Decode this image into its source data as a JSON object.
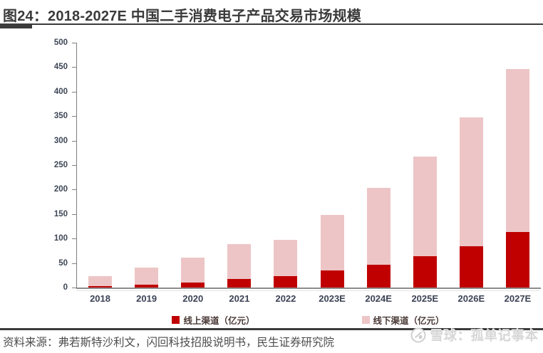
{
  "figure": {
    "title": "图24：2018-2027E 中国二手消费电子产品交易市场规模"
  },
  "chart_data": {
    "type": "bar",
    "stacked": true,
    "title": "2018-2027E 中国二手消费电子产品交易市场规模",
    "unit": "亿元",
    "categories": [
      "2018",
      "2019",
      "2020",
      "2021",
      "2022",
      "2023E",
      "2024E",
      "2025E",
      "2026E",
      "2027E"
    ],
    "series": [
      {
        "name": "线上渠道（亿元）",
        "color": "#c00000",
        "values": [
          3,
          6,
          10,
          17,
          23,
          35,
          47,
          64,
          85,
          114
        ]
      },
      {
        "name": "线下渠道（亿元）",
        "color": "#edc5c6",
        "values": [
          20,
          34,
          51,
          72,
          75,
          114,
          156,
          204,
          262,
          332
        ]
      }
    ],
    "totals": [
      23,
      40,
      61,
      89,
      98,
      149,
      203,
      268,
      347,
      446
    ],
    "ylim": [
      0,
      500
    ],
    "ytick_step": 50,
    "grid": false,
    "legend_position": "bottom"
  },
  "source": {
    "text": "资料来源：弗若斯特沙利文，闪回科技招股说明书，民生证券研究院"
  },
  "watermark": {
    "icon": "xueqiu-logo",
    "text": "雪球：孤单记事本"
  },
  "colors": {
    "online_red": "#c00000",
    "offline_pink": "#edc5c6",
    "title_text": "#3a3a3a",
    "rule_dark": "#3b3b3b",
    "axis_label": "#3d4656",
    "legend_text": "#4a3a37",
    "source_text": "#4c4c4c",
    "watermark_gray": "#d7d7d7"
  }
}
